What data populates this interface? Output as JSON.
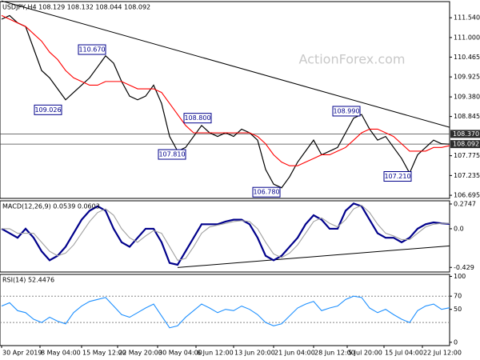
{
  "chart_data": [
    {
      "type": "line",
      "title": "USDJPY,H4 108.129 108.132 108.044 108.092",
      "watermark": "ActionForex.com",
      "ylim": [
        106.61,
        111.98
      ],
      "yticks": [
        {
          "value": 111.54,
          "label": "111.540"
        },
        {
          "value": 111.0,
          "label": "111.000"
        },
        {
          "value": 110.465,
          "label": "110.465"
        },
        {
          "value": 109.925,
          "label": "109.925"
        },
        {
          "value": 109.38,
          "label": "109.380"
        },
        {
          "value": 108.845,
          "label": "108.845"
        },
        {
          "value": 107.775,
          "label": "107.775"
        },
        {
          "value": 107.235,
          "label": "107.235"
        },
        {
          "value": 106.695,
          "label": "106.695"
        }
      ],
      "price_labels": [
        {
          "value": 108.37,
          "label": "108.370"
        },
        {
          "value": 108.092,
          "label": "108.092"
        }
      ],
      "series": [
        {
          "name": "Price",
          "color": "#000000",
          "values": [
            111.5,
            111.6,
            111.4,
            111.3,
            110.7,
            110.1,
            109.9,
            109.6,
            109.3,
            109.5,
            109.7,
            109.9,
            110.2,
            110.5,
            110.3,
            109.8,
            109.4,
            109.3,
            109.4,
            109.7,
            109.2,
            108.3,
            107.9,
            108.0,
            108.3,
            108.6,
            108.4,
            108.3,
            108.4,
            108.3,
            108.5,
            108.4,
            108.2,
            107.4,
            107.0,
            106.9,
            107.2,
            107.6,
            107.9,
            108.2,
            107.8,
            107.9,
            108.0,
            108.4,
            108.8,
            108.9,
            108.5,
            108.2,
            108.3,
            108.0,
            107.7,
            107.3,
            107.8,
            108.0,
            108.2,
            108.1,
            108.09
          ]
        },
        {
          "name": "MA",
          "color": "#ff0000",
          "values": [
            111.6,
            111.5,
            111.4,
            111.3,
            111.1,
            110.9,
            110.6,
            110.4,
            110.1,
            109.9,
            109.8,
            109.7,
            109.7,
            109.8,
            109.8,
            109.8,
            109.7,
            109.6,
            109.6,
            109.6,
            109.5,
            109.2,
            108.9,
            108.6,
            108.4,
            108.4,
            108.4,
            108.4,
            108.4,
            108.4,
            108.4,
            108.4,
            108.3,
            108.1,
            107.8,
            107.6,
            107.5,
            107.5,
            107.6,
            107.7,
            107.8,
            107.8,
            107.9,
            108.0,
            108.2,
            108.4,
            108.5,
            108.5,
            108.4,
            108.3,
            108.1,
            107.9,
            107.9,
            107.9,
            108.0,
            108.0,
            108.05
          ]
        }
      ],
      "trendline": {
        "x": [
          0,
          56
        ],
        "y": [
          112.0,
          108.55
        ]
      },
      "annotations": [
        {
          "text": "110.670",
          "x": 11.3,
          "y": 110.67
        },
        {
          "text": "109.026",
          "x": 5.8,
          "y": 109.026
        },
        {
          "text": "108.800",
          "x": 24.5,
          "y": 108.8
        },
        {
          "text": "107.810",
          "x": 21.3,
          "y": 107.81
        },
        {
          "text": "108.990",
          "x": 43.1,
          "y": 108.99
        },
        {
          "text": "106.780",
          "x": 33.1,
          "y": 106.78
        },
        {
          "text": "107.210",
          "x": 49.5,
          "y": 107.21
        }
      ]
    },
    {
      "type": "line",
      "title": "MACD(12,26,9) 0.0539 0.0603",
      "ylim": [
        -0.48,
        0.31
      ],
      "yticks": [
        0.2747,
        {
          "value": 0,
          "label": "0.0"
        },
        -0.429
      ],
      "series": [
        {
          "name": "MACD",
          "color": "#00008b",
          "values": [
            0.0,
            -0.05,
            -0.1,
            0.0,
            -0.1,
            -0.25,
            -0.35,
            -0.3,
            -0.2,
            -0.05,
            0.1,
            0.2,
            0.25,
            0.2,
            0.0,
            -0.15,
            -0.2,
            -0.1,
            0.0,
            0.0,
            -0.15,
            -0.38,
            -0.4,
            -0.25,
            -0.1,
            0.05,
            0.05,
            0.05,
            0.08,
            0.1,
            0.1,
            0.05,
            -0.1,
            -0.3,
            -0.35,
            -0.3,
            -0.2,
            -0.1,
            0.05,
            0.15,
            0.1,
            0.0,
            0.0,
            0.2,
            0.28,
            0.25,
            0.1,
            -0.05,
            -0.1,
            -0.1,
            -0.15,
            -0.1,
            0.0,
            0.05,
            0.07,
            0.06,
            0.054
          ]
        },
        {
          "name": "Signal",
          "color": "#a0a0a0",
          "values": [
            0.0,
            0.0,
            -0.05,
            -0.05,
            -0.05,
            -0.15,
            -0.25,
            -0.3,
            -0.27,
            -0.18,
            -0.05,
            0.08,
            0.18,
            0.22,
            0.15,
            0.0,
            -0.1,
            -0.15,
            -0.08,
            -0.02,
            -0.05,
            -0.2,
            -0.35,
            -0.33,
            -0.2,
            -0.05,
            0.02,
            0.04,
            0.06,
            0.08,
            0.09,
            0.08,
            0.0,
            -0.15,
            -0.28,
            -0.32,
            -0.27,
            -0.18,
            -0.05,
            0.08,
            0.12,
            0.06,
            0.02,
            0.1,
            0.22,
            0.26,
            0.18,
            0.05,
            -0.05,
            -0.08,
            -0.12,
            -0.12,
            -0.05,
            0.02,
            0.05,
            0.06,
            0.06
          ]
        }
      ],
      "trendline": {
        "x": [
          22,
          56
        ],
        "y": [
          -0.43,
          -0.19
        ]
      }
    },
    {
      "type": "line",
      "title": "RSI(14) 52.4476",
      "ylim": [
        -5,
        103
      ],
      "yticks": [
        100,
        70,
        50,
        0
      ],
      "levels": [
        70,
        30
      ],
      "series": [
        {
          "name": "RSI",
          "color": "#1e90ff",
          "values": [
            55,
            60,
            48,
            45,
            35,
            30,
            38,
            32,
            28,
            45,
            55,
            62,
            65,
            68,
            55,
            42,
            38,
            45,
            52,
            58,
            40,
            22,
            25,
            38,
            48,
            58,
            52,
            45,
            50,
            48,
            55,
            50,
            42,
            30,
            25,
            28,
            40,
            52,
            58,
            62,
            48,
            52,
            55,
            65,
            70,
            68,
            52,
            45,
            50,
            42,
            35,
            30,
            48,
            55,
            58,
            50,
            52.4476
          ]
        }
      ],
      "xticks": [
        {
          "value": 0,
          "label": "30 Apr 2019"
        },
        {
          "value": 4.8,
          "label": "8 May 04:00"
        },
        {
          "value": 10,
          "label": "15 May 12:00"
        },
        {
          "value": 14.5,
          "label": "22 May 20:00"
        },
        {
          "value": 19.5,
          "label": "30 May 04:00"
        },
        {
          "value": 24.3,
          "label": "6 Jun 12:00"
        },
        {
          "value": 29,
          "label": "13 Jun 20:00"
        },
        {
          "value": 34,
          "label": "21 Jun 04:00"
        },
        {
          "value": 39,
          "label": "28 Jun 12:00"
        },
        {
          "value": 43.2,
          "label": "5 Jul 20:00"
        },
        {
          "value": 47.8,
          "label": "15 Jul 04:00"
        },
        {
          "value": 52.6,
          "label": "22 Jul 12:00"
        }
      ]
    }
  ]
}
